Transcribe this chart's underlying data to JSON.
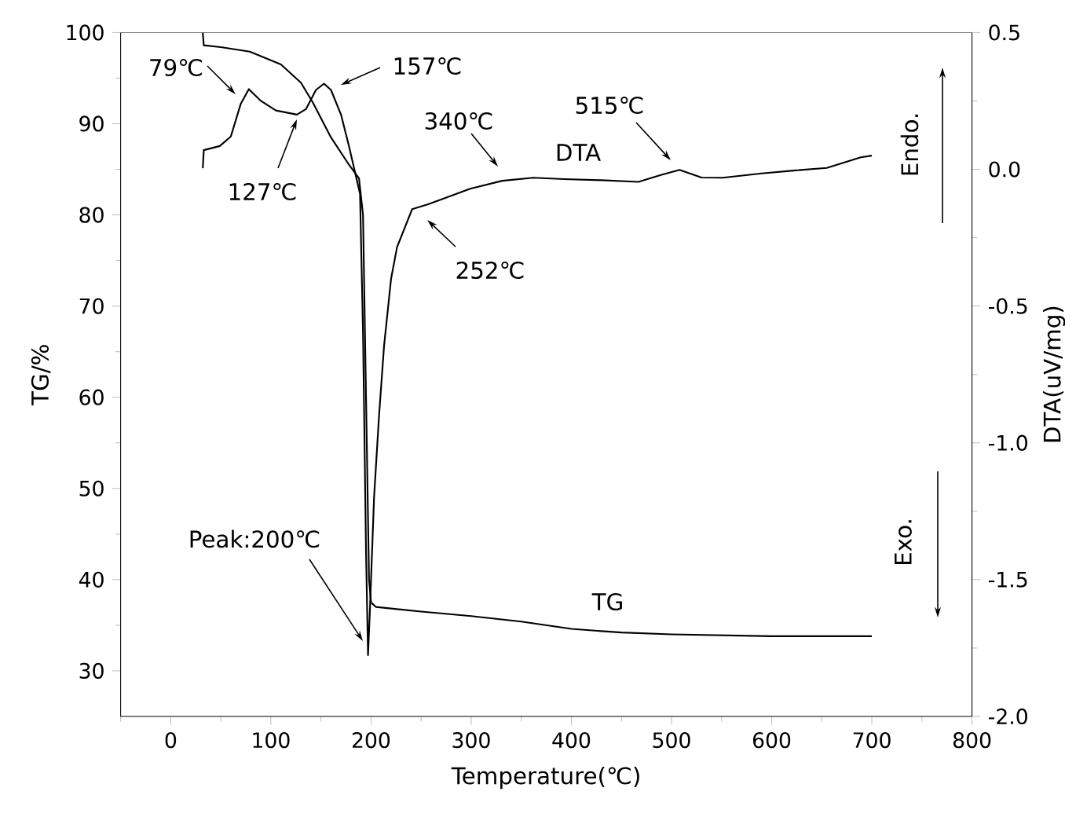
{
  "chart_data": {
    "type": "line",
    "xlabel": "Temperature(℃)",
    "ylabel": "TG/%",
    "y2label": "DTA(uV/mg)",
    "xlim": [
      -50,
      800
    ],
    "ylim": [
      25,
      100
    ],
    "y2lim": [
      -2,
      0.5
    ],
    "xticks": [
      {
        "value": -50,
        "label": null
      },
      0,
      {
        "value": 50,
        "label": null
      },
      100,
      {
        "value": 150,
        "label": null
      },
      200,
      {
        "value": 250,
        "label": null
      },
      300,
      {
        "value": 350,
        "label": null
      },
      400,
      {
        "value": 450,
        "label": null
      },
      500,
      {
        "value": 550,
        "label": null
      },
      600,
      {
        "value": 650,
        "label": null
      },
      700,
      {
        "value": 750,
        "label": null
      },
      800
    ],
    "yticks": [
      30,
      {
        "value": 35,
        "label": null
      },
      40,
      {
        "value": 45,
        "label": null
      },
      50,
      {
        "value": 55,
        "label": null
      },
      60,
      {
        "value": 65,
        "label": null
      },
      70,
      {
        "value": 75,
        "label": null
      },
      80,
      {
        "value": 85,
        "label": null
      },
      90,
      {
        "value": 95,
        "label": null
      },
      100
    ],
    "y2ticks": [
      {
        "value": -2,
        "label": "-2.0"
      },
      {
        "value": -1.75,
        "label": null
      },
      {
        "value": -1.5,
        "label": "-1.5"
      },
      {
        "value": -1.25,
        "label": null
      },
      {
        "value": -1,
        "label": "-1.0"
      },
      {
        "value": -0.75,
        "label": null
      },
      {
        "value": -0.5,
        "label": "-0.5"
      },
      {
        "value": -0.25,
        "label": null
      },
      {
        "value": 0,
        "label": "0.0"
      },
      {
        "value": 0.25,
        "label": null
      },
      {
        "value": 0.5,
        "label": "0.5"
      }
    ],
    "series": [
      {
        "name": "TG",
        "color": "#000000",
        "x": [
          32,
          33,
          50,
          79,
          110,
          130,
          142,
          160,
          178,
          188,
          192,
          195,
          198,
          200,
          205,
          250,
          300,
          350,
          400,
          450,
          500,
          600,
          700
        ],
        "values": [
          100,
          98.6,
          98.4,
          97.9,
          96.5,
          94.5,
          92.3,
          88.5,
          85.5,
          84,
          80,
          60,
          40,
          37.5,
          37,
          36.5,
          36,
          35.4,
          34.6,
          34.2,
          34,
          33.8,
          33.8
        ]
      },
      {
        "name": "DTA",
        "color": "#000000",
        "axis": "y2",
        "x": [
          32,
          33,
          49,
          60,
          70,
          78,
          90,
          105,
          126,
          135,
          145,
          153,
          160,
          170,
          178,
          189,
          192,
          195,
          197,
          199,
          203,
          208,
          213,
          220,
          226,
          241,
          257,
          299,
          331,
          362,
          393,
          430,
          467,
          490,
          508,
          530,
          551,
          590,
          624,
          655,
          689,
          700
        ],
        "values": [
          0.004,
          0.07,
          0.085,
          0.12,
          0.24,
          0.293,
          0.25,
          0.215,
          0.2,
          0.22,
          0.29,
          0.313,
          0.29,
          0.2,
          0.084,
          -0.09,
          -0.6,
          -1.4,
          -1.776,
          -1.6,
          -1.2,
          -0.9,
          -0.645,
          -0.4,
          -0.284,
          -0.146,
          -0.128,
          -0.071,
          -0.042,
          -0.031,
          -0.036,
          -0.04,
          -0.046,
          -0.02,
          -0.002,
          -0.03,
          -0.031,
          -0.015,
          -0.004,
          0.005,
          0.044,
          0.05
        ]
      }
    ],
    "annotations": [
      "79℃",
      "127℃",
      "157℃",
      "340℃",
      "252℃",
      "515℃",
      "Peak:200℃",
      "Endo.",
      "Exo."
    ]
  }
}
